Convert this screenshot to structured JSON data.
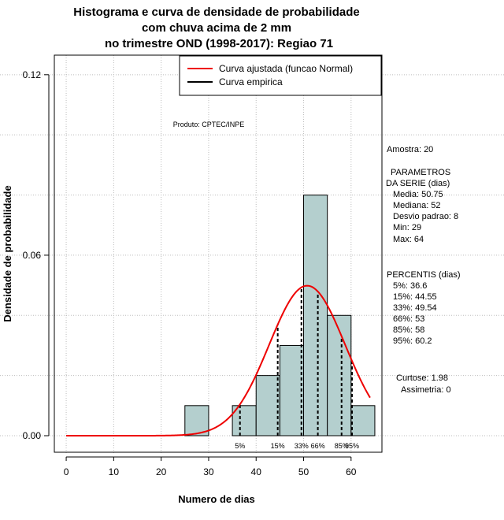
{
  "chart_data": {
    "type": "histogram",
    "title": [
      "Histograma e curva de densidade de probabilidade",
      "com chuva acima de 2 mm",
      "no trimestre OND (1998-2017): Regiao 71"
    ],
    "xlabel": "Numero de dias",
    "ylabel": "Densidade de probabilidade",
    "xlim": [
      -2.5,
      66.5
    ],
    "ylim": [
      -0.0055,
      0.1265
    ],
    "x_ticks": [
      0,
      10,
      20,
      30,
      40,
      50,
      60
    ],
    "y_ticks": [
      0.0,
      0.06,
      0.12
    ],
    "y_tick_labels": [
      "0.00",
      "0.06",
      "0.12"
    ],
    "grid": true,
    "bin_edges": [
      25,
      30,
      35,
      40,
      45,
      50,
      55,
      60,
      65
    ],
    "densities": [
      0.01,
      0.0,
      0.01,
      0.02,
      0.03,
      0.08,
      0.04,
      0.01
    ],
    "bar_color": "#b4cfce",
    "legend": {
      "position": "top-right",
      "entries": [
        {
          "label": "Curva ajustada (funcao Normal)",
          "color": "#ee0000"
        },
        {
          "label": "Curva empirica",
          "color": "#000000"
        }
      ]
    },
    "normal_curve": {
      "mean": 50.75,
      "sd": 8,
      "x_range": [
        0,
        64
      ],
      "color": "#ee0000"
    },
    "product_label": "Produto: CPTEC/INPE",
    "percentile_lines": [
      {
        "label": "5%",
        "x": 36.6
      },
      {
        "label": "15%",
        "x": 44.55
      },
      {
        "label": "33%",
        "x": 49.54
      },
      {
        "label": "66%",
        "x": 53
      },
      {
        "label": "85%",
        "x": 58
      },
      {
        "label": "95%",
        "x": 60.2
      }
    ],
    "side_panel": {
      "amostra": "Amostra: 20",
      "parametros_title": [
        "PARAMETROS",
        "DA SERIE (dias)"
      ],
      "parametros": [
        "Media: 50.75",
        "Mediana: 52",
        "Desvio padrao: 8",
        "Min: 29",
        "Max: 64"
      ],
      "percentis_title": "PERCENTIS (dias)",
      "percentis": [
        "5%: 36.6",
        "15%: 44.55",
        "33%: 49.54",
        "66%: 53",
        "85%: 58",
        "95%: 60.2"
      ],
      "curtose": "Curtose: 1.98",
      "assimetria": "Assimetria: 0"
    }
  }
}
